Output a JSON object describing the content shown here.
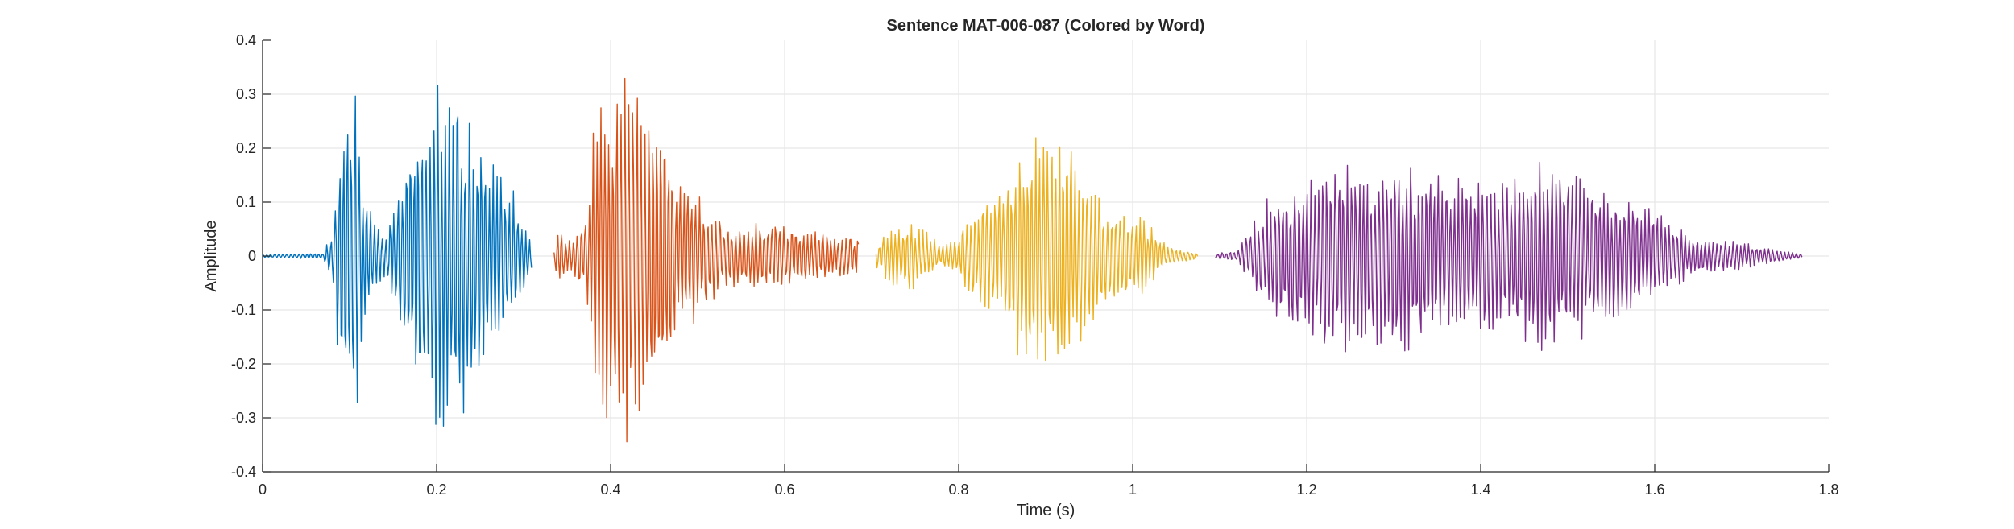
{
  "chart_data": {
    "type": "line",
    "title": "Sentence MAT-006-087 (Colored by Word)",
    "xlabel": "Time (s)",
    "ylabel": "Amplitude",
    "xlim": [
      0,
      1.8
    ],
    "ylim": [
      -0.4,
      0.4
    ],
    "xticks": [
      0,
      0.2,
      0.4,
      0.6,
      0.8,
      1.0,
      1.2,
      1.4,
      1.6,
      1.8
    ],
    "xtick_labels": [
      "0",
      "0.2",
      "0.4",
      "0.6",
      "0.8",
      "1",
      "1.2",
      "1.4",
      "1.6",
      "1.8"
    ],
    "yticks": [
      -0.4,
      -0.3,
      -0.2,
      -0.1,
      0,
      0.1,
      0.2,
      0.3,
      0.4
    ],
    "ytick_labels": [
      "-0.4",
      "-0.3",
      "-0.2",
      "-0.1",
      "0",
      "0.1",
      "0.2",
      "0.3",
      "0.4"
    ],
    "grid": true,
    "series": [
      {
        "color": "#0072BD",
        "t_start": 0.0,
        "t_end": 0.31,
        "envelope": [
          [
            0.0,
            0.003
          ],
          [
            0.07,
            0.005
          ],
          [
            0.08,
            0.05
          ],
          [
            0.09,
            0.27
          ],
          [
            0.1,
            0.31
          ],
          [
            0.11,
            0.29
          ],
          [
            0.12,
            0.12
          ],
          [
            0.13,
            0.06
          ],
          [
            0.14,
            0.04
          ],
          [
            0.15,
            0.09
          ],
          [
            0.17,
            0.21
          ],
          [
            0.19,
            0.3
          ],
          [
            0.2,
            0.32
          ],
          [
            0.22,
            0.32
          ],
          [
            0.24,
            0.27
          ],
          [
            0.26,
            0.2
          ],
          [
            0.28,
            0.14
          ],
          [
            0.29,
            0.12
          ],
          [
            0.3,
            0.06
          ],
          [
            0.31,
            0.02
          ]
        ]
      },
      {
        "color": "#D95319",
        "t_start": 0.335,
        "t_end": 0.685,
        "envelope": [
          [
            0.335,
            0.01
          ],
          [
            0.34,
            0.06
          ],
          [
            0.35,
            0.03
          ],
          [
            0.36,
            0.05
          ],
          [
            0.37,
            0.06
          ],
          [
            0.38,
            0.24
          ],
          [
            0.39,
            0.3
          ],
          [
            0.41,
            0.31
          ],
          [
            0.42,
            0.35
          ],
          [
            0.43,
            0.34
          ],
          [
            0.45,
            0.3
          ],
          [
            0.47,
            0.18
          ],
          [
            0.49,
            0.14
          ],
          [
            0.51,
            0.1
          ],
          [
            0.53,
            0.06
          ],
          [
            0.55,
            0.06
          ],
          [
            0.58,
            0.07
          ],
          [
            0.62,
            0.05
          ],
          [
            0.66,
            0.045
          ],
          [
            0.685,
            0.04
          ]
        ]
      },
      {
        "color": "#EDB120",
        "t_start": 0.705,
        "t_end": 1.075,
        "envelope": [
          [
            0.705,
            0.02
          ],
          [
            0.72,
            0.05
          ],
          [
            0.74,
            0.07
          ],
          [
            0.76,
            0.05
          ],
          [
            0.78,
            0.02
          ],
          [
            0.8,
            0.04
          ],
          [
            0.82,
            0.1
          ],
          [
            0.84,
            0.12
          ],
          [
            0.86,
            0.17
          ],
          [
            0.88,
            0.22
          ],
          [
            0.9,
            0.24
          ],
          [
            0.92,
            0.22
          ],
          [
            0.94,
            0.17
          ],
          [
            0.96,
            0.12
          ],
          [
            0.98,
            0.09
          ],
          [
            1.0,
            0.08
          ],
          [
            1.02,
            0.06
          ],
          [
            1.04,
            0.02
          ],
          [
            1.06,
            0.01
          ],
          [
            1.075,
            0.005
          ]
        ]
      },
      {
        "color": "#7E2F8E",
        "t_start": 1.095,
        "t_end": 1.77,
        "envelope": [
          [
            1.095,
            0.005
          ],
          [
            1.12,
            0.01
          ],
          [
            1.14,
            0.07
          ],
          [
            1.16,
            0.12
          ],
          [
            1.18,
            0.14
          ],
          [
            1.2,
            0.16
          ],
          [
            1.22,
            0.2
          ],
          [
            1.24,
            0.21
          ],
          [
            1.26,
            0.18
          ],
          [
            1.28,
            0.17
          ],
          [
            1.3,
            0.18
          ],
          [
            1.33,
            0.17
          ],
          [
            1.36,
            0.16
          ],
          [
            1.38,
            0.15
          ],
          [
            1.4,
            0.16
          ],
          [
            1.43,
            0.15
          ],
          [
            1.46,
            0.17
          ],
          [
            1.48,
            0.18
          ],
          [
            1.5,
            0.17
          ],
          [
            1.52,
            0.15
          ],
          [
            1.55,
            0.13
          ],
          [
            1.58,
            0.11
          ],
          [
            1.6,
            0.09
          ],
          [
            1.63,
            0.05
          ],
          [
            1.66,
            0.03
          ],
          [
            1.69,
            0.03
          ],
          [
            1.72,
            0.02
          ],
          [
            1.75,
            0.01
          ],
          [
            1.77,
            0.003
          ]
        ]
      }
    ]
  }
}
